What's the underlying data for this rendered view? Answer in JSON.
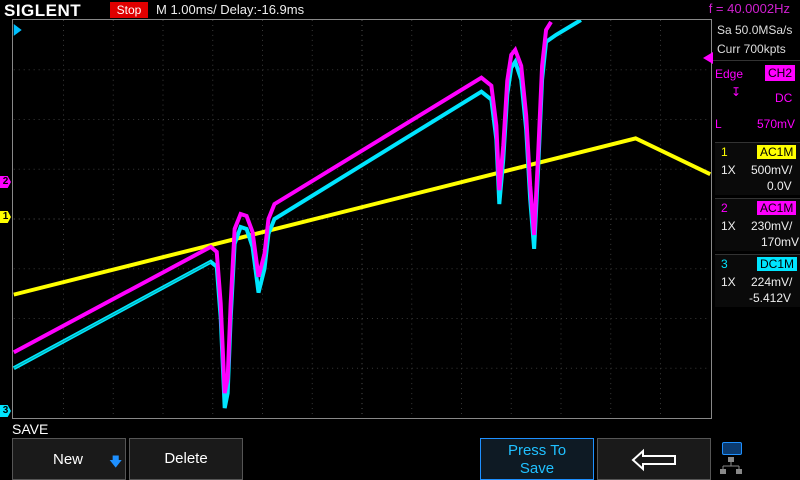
{
  "header": {
    "brand": "SIGLENT",
    "status": "Stop",
    "timebase": "M 1.00ms/ Delay:-16.9ms",
    "frequency": "f = 40.0002Hz"
  },
  "acquisition": {
    "sample_rate": "Sa 50.0MSa/s",
    "memory": "Curr 700kpts"
  },
  "trigger": {
    "type": "Edge",
    "source": "CH2",
    "coupling": "DC",
    "level_label": "L",
    "level": "570mV"
  },
  "channels": [
    {
      "num": "1",
      "coupling": "AC1M",
      "probe": "1X",
      "scale": "500mV/",
      "offset": "0.0V",
      "color": "#ffff00"
    },
    {
      "num": "2",
      "coupling": "AC1M",
      "probe": "1X",
      "scale": "230mV/",
      "offset": "170mV",
      "color": "#ff00ff"
    },
    {
      "num": "3",
      "coupling": "DC1M",
      "probe": "1X",
      "scale": "224mV/",
      "offset": "-5.412V",
      "color": "#00e5ff"
    }
  ],
  "menu": {
    "title": "SAVE",
    "new_label": "New",
    "delete_label": "Delete",
    "press_to_save": "Press To Save"
  },
  "markers": {
    "ch1": "1",
    "ch2": "2",
    "ch3": "3"
  }
}
